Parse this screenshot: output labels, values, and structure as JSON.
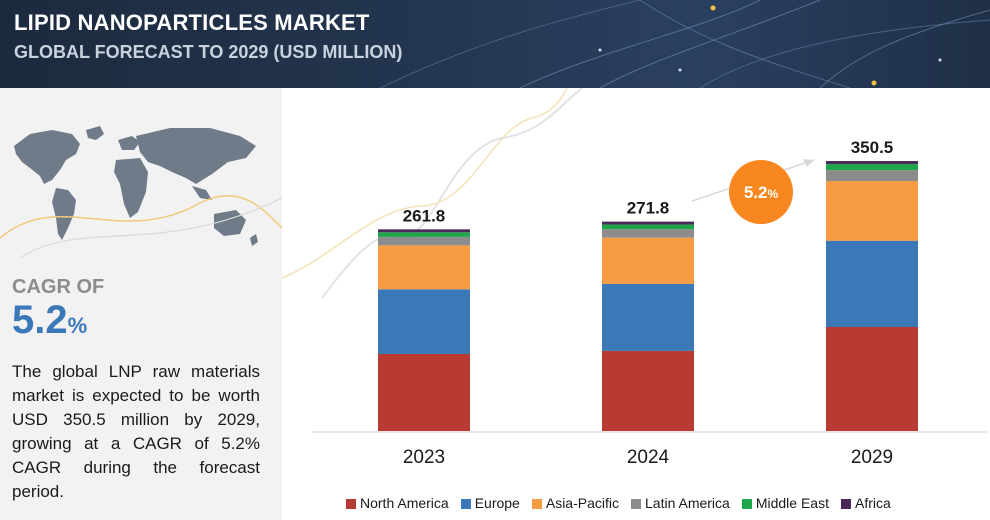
{
  "header": {
    "title": "LIPID NANOPARTICLES MARKET",
    "subtitle": "GLOBAL FORECAST TO 2029 (USD MILLION)"
  },
  "sidebar": {
    "cagr_label": "CAGR OF",
    "cagr_value": "5.2",
    "cagr_unit": "%",
    "description": "The global LNP raw materials market is expected to be worth USD 350.5 million by 2029, growing at a CAGR of 5.2% CAGR during the forecast period."
  },
  "colors": {
    "accent_blue": "#3b78b8",
    "badge_orange": "#f7871e"
  },
  "chart_data": {
    "type": "bar",
    "stacked": true,
    "categories": [
      "2023",
      "2024",
      "2029"
    ],
    "totals": [
      "261.8",
      "271.8",
      "350.5"
    ],
    "total_values": [
      261.8,
      271.8,
      350.5
    ],
    "series": [
      {
        "name": "North America",
        "color": "#b83a32",
        "values": [
          100.0,
          104.0,
          135.0
        ]
      },
      {
        "name": "Europe",
        "color": "#3b78b8",
        "values": [
          84.0,
          87.0,
          112.0
        ]
      },
      {
        "name": "Asia-Pacific",
        "color": "#f79c42",
        "values": [
          57.0,
          60.0,
          77.5
        ]
      },
      {
        "name": "Latin America",
        "color": "#8c8c8c",
        "values": [
          11.0,
          11.0,
          14.0
        ]
      },
      {
        "name": "Middle East",
        "color": "#1fa64a",
        "values": [
          6.0,
          6.0,
          8.0
        ]
      },
      {
        "name": "Africa",
        "color": "#4a2a5a",
        "values": [
          3.8,
          3.8,
          4.0
        ]
      }
    ],
    "growth_badge": "5.2",
    "growth_badge_unit": "%",
    "ylim": [
      0,
      350.5
    ],
    "legend_position": "bottom",
    "grid": false
  }
}
